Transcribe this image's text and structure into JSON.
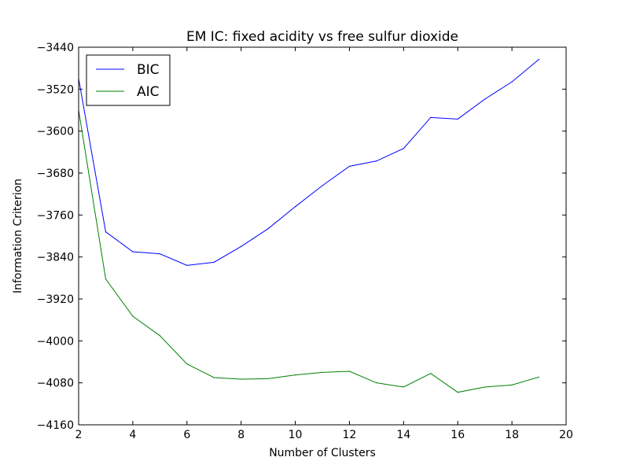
{
  "chart_data": {
    "type": "line",
    "title": "EM IC: fixed acidity vs free sulfur dioxide",
    "xlabel": "Number of Clusters",
    "ylabel": "Information Criterion",
    "xlim": [
      2,
      20
    ],
    "ylim": [
      -4160,
      -3440
    ],
    "xticks": [
      2,
      4,
      6,
      8,
      10,
      12,
      14,
      16,
      18,
      20
    ],
    "yticks": [
      -3440,
      -3520,
      -3600,
      -3680,
      -3760,
      -3840,
      -3920,
      -4000,
      -4080,
      -4160
    ],
    "grid": false,
    "legend_position": "top-left",
    "x": [
      2,
      3,
      4,
      5,
      6,
      7,
      8,
      9,
      10,
      11,
      12,
      13,
      14,
      15,
      16,
      17,
      18,
      19
    ],
    "series": [
      {
        "name": "BIC",
        "color": "#0000ff",
        "values": [
          -3500,
          -3792,
          -3830,
          -3834,
          -3856,
          -3850,
          -3820,
          -3786,
          -3744,
          -3704,
          -3667,
          -3657,
          -3633,
          -3574,
          -3577,
          -3539,
          -3506,
          -3463
        ]
      },
      {
        "name": "AIC",
        "color": "#008000",
        "values": [
          -3560,
          -3882,
          -3953,
          -3990,
          -4044,
          -4070,
          -4073,
          -4072,
          -4065,
          -4060,
          -4058,
          -4080,
          -4088,
          -4062,
          -4098,
          -4088,
          -4084,
          -4069
        ]
      }
    ]
  }
}
